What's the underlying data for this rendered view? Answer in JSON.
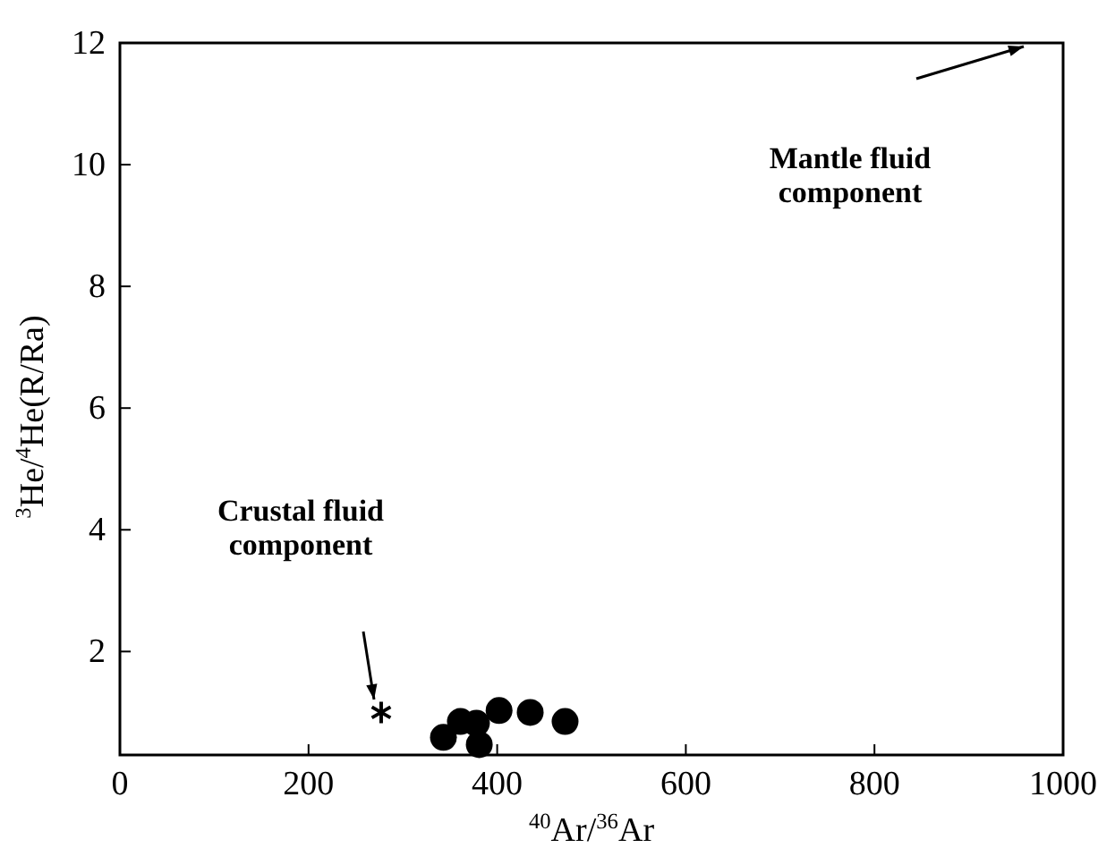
{
  "chart_data": {
    "type": "scatter",
    "xlabel": "$^{40}$Ar/$^{36}$Ar",
    "ylabel": "$^{3}$He/$^{4}$He(R/Ra)",
    "xlim": [
      0,
      1000
    ],
    "xticks": [
      0,
      200,
      400,
      600,
      800,
      1000
    ],
    "ylim": [
      0.3,
      12
    ],
    "yticks": [
      2,
      4,
      6,
      8,
      10,
      12
    ],
    "grid": false,
    "series": [
      {
        "color": "#000000",
        "marker": "circle",
        "x": [
          343,
          361,
          378,
          381,
          402,
          435,
          472
        ],
        "values": [
          0.59,
          0.85,
          0.82,
          0.47,
          1.03,
          1.0,
          0.85
        ]
      },
      {
        "color": "#000000",
        "marker": "cross",
        "x": [
          277
        ],
        "values": [
          1.0
        ]
      }
    ],
    "annotations": [
      "Mantle fluid component",
      "Crustal fluid component"
    ]
  }
}
